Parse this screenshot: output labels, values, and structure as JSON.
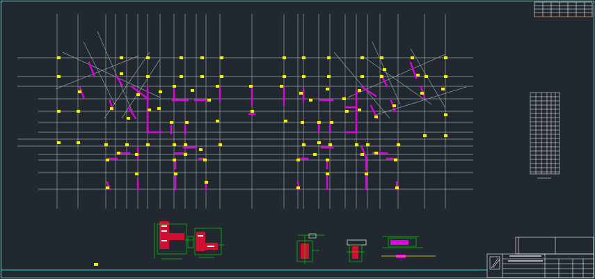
{
  "drawing": {
    "background": "#212830",
    "colors": {
      "frame": "#00e5e5",
      "grid": "#9aa0a6",
      "wall": "#e000e0",
      "marker": "#f2f200",
      "detail_fill": "#d01030",
      "detail_line": "#00d000",
      "table": "#ffffff",
      "title_red": "#ff3030"
    },
    "icons": {
      "plan": "structural-plan-icon",
      "wall_table": "wall-schedule-icon",
      "details": "section-detail-icon",
      "title_block": "title-block-icon"
    }
  }
}
